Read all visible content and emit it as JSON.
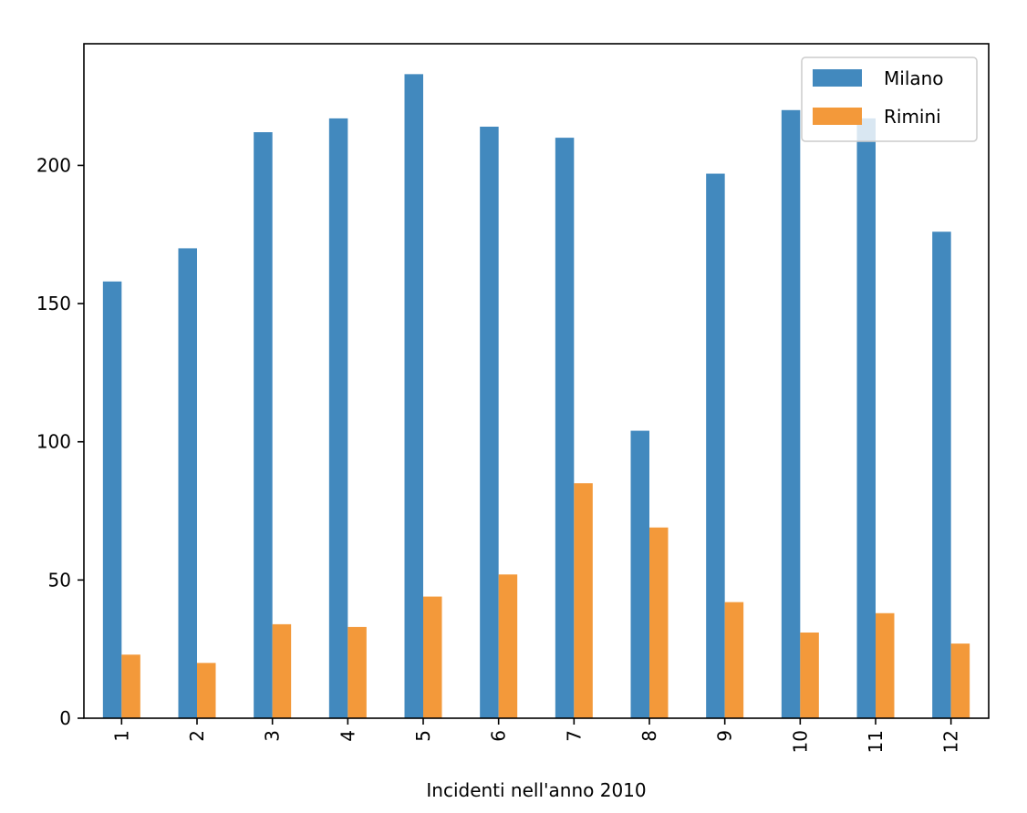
{
  "chart_data": {
    "type": "bar",
    "title": "",
    "xlabel": "Incidenti nell'anno 2010",
    "ylabel": "",
    "categories": [
      "1",
      "2",
      "3",
      "4",
      "5",
      "6",
      "7",
      "8",
      "9",
      "10",
      "11",
      "12"
    ],
    "series": [
      {
        "name": "Milano",
        "color": "#4289be",
        "values": [
          158,
          170,
          212,
          217,
          233,
          214,
          210,
          104,
          197,
          220,
          217,
          176
        ]
      },
      {
        "name": "Rimini",
        "color": "#f3993a",
        "values": [
          23,
          20,
          34,
          33,
          44,
          52,
          85,
          69,
          42,
          31,
          38,
          27
        ]
      }
    ],
    "yticks": [
      0,
      50,
      100,
      150,
      200
    ],
    "ylim": [
      0,
      244
    ],
    "grid": false,
    "legend": "top-right"
  }
}
